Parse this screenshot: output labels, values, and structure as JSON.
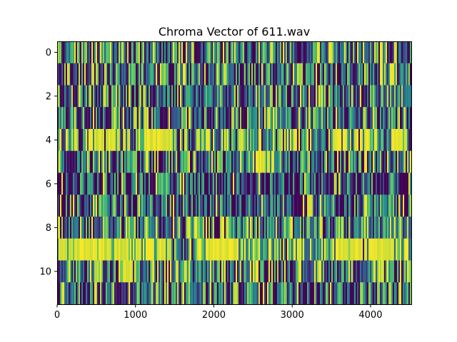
{
  "chart_data": {
    "type": "heatmap",
    "title": "Chroma Vector of 611.wav",
    "xlabel": "",
    "ylabel": "",
    "xlim": [
      0,
      4520
    ],
    "ylim": [
      11.5,
      -0.5
    ],
    "x_ticks": [
      0,
      1000,
      2000,
      3000,
      4000
    ],
    "y_ticks": [
      0,
      2,
      4,
      6,
      8,
      10
    ],
    "n_rows": 12,
    "colormap": "viridis",
    "colors": [
      "#440154",
      "#3b528b",
      "#21918c",
      "#5ec962",
      "#fde725"
    ],
    "grid": false,
    "legend": "none",
    "row_patterns": [
      {
        "row": 0,
        "base": 0.45
      },
      {
        "row": 1,
        "base": 0.4
      },
      {
        "row": 2,
        "base": 0.4
      },
      {
        "row": 3,
        "base": 0.38
      },
      {
        "row": 4,
        "base": 0.55,
        "bright_ranges": [
          [
            500,
            800
          ],
          [
            1100,
            1500
          ],
          [
            3500,
            3980
          ],
          [
            4250,
            4450
          ]
        ]
      },
      {
        "row": 5,
        "base": 0.42,
        "bright_ranges": [
          [
            2500,
            2700
          ]
        ]
      },
      {
        "row": 6,
        "base": 0.25
      },
      {
        "row": 7,
        "base": 0.32,
        "bright_ranges": [
          [
            3180,
            3250
          ]
        ]
      },
      {
        "row": 8,
        "base": 0.45
      },
      {
        "row": 9,
        "base": 0.75,
        "bright_ranges": [
          [
            0,
            900
          ],
          [
            1000,
            1450
          ],
          [
            1900,
            2300
          ],
          [
            3600,
            4300
          ]
        ]
      },
      {
        "row": 10,
        "base": 0.48,
        "bright_ranges": [
          [
            830,
            930
          ]
        ]
      },
      {
        "row": 11,
        "base": 0.4
      }
    ]
  }
}
